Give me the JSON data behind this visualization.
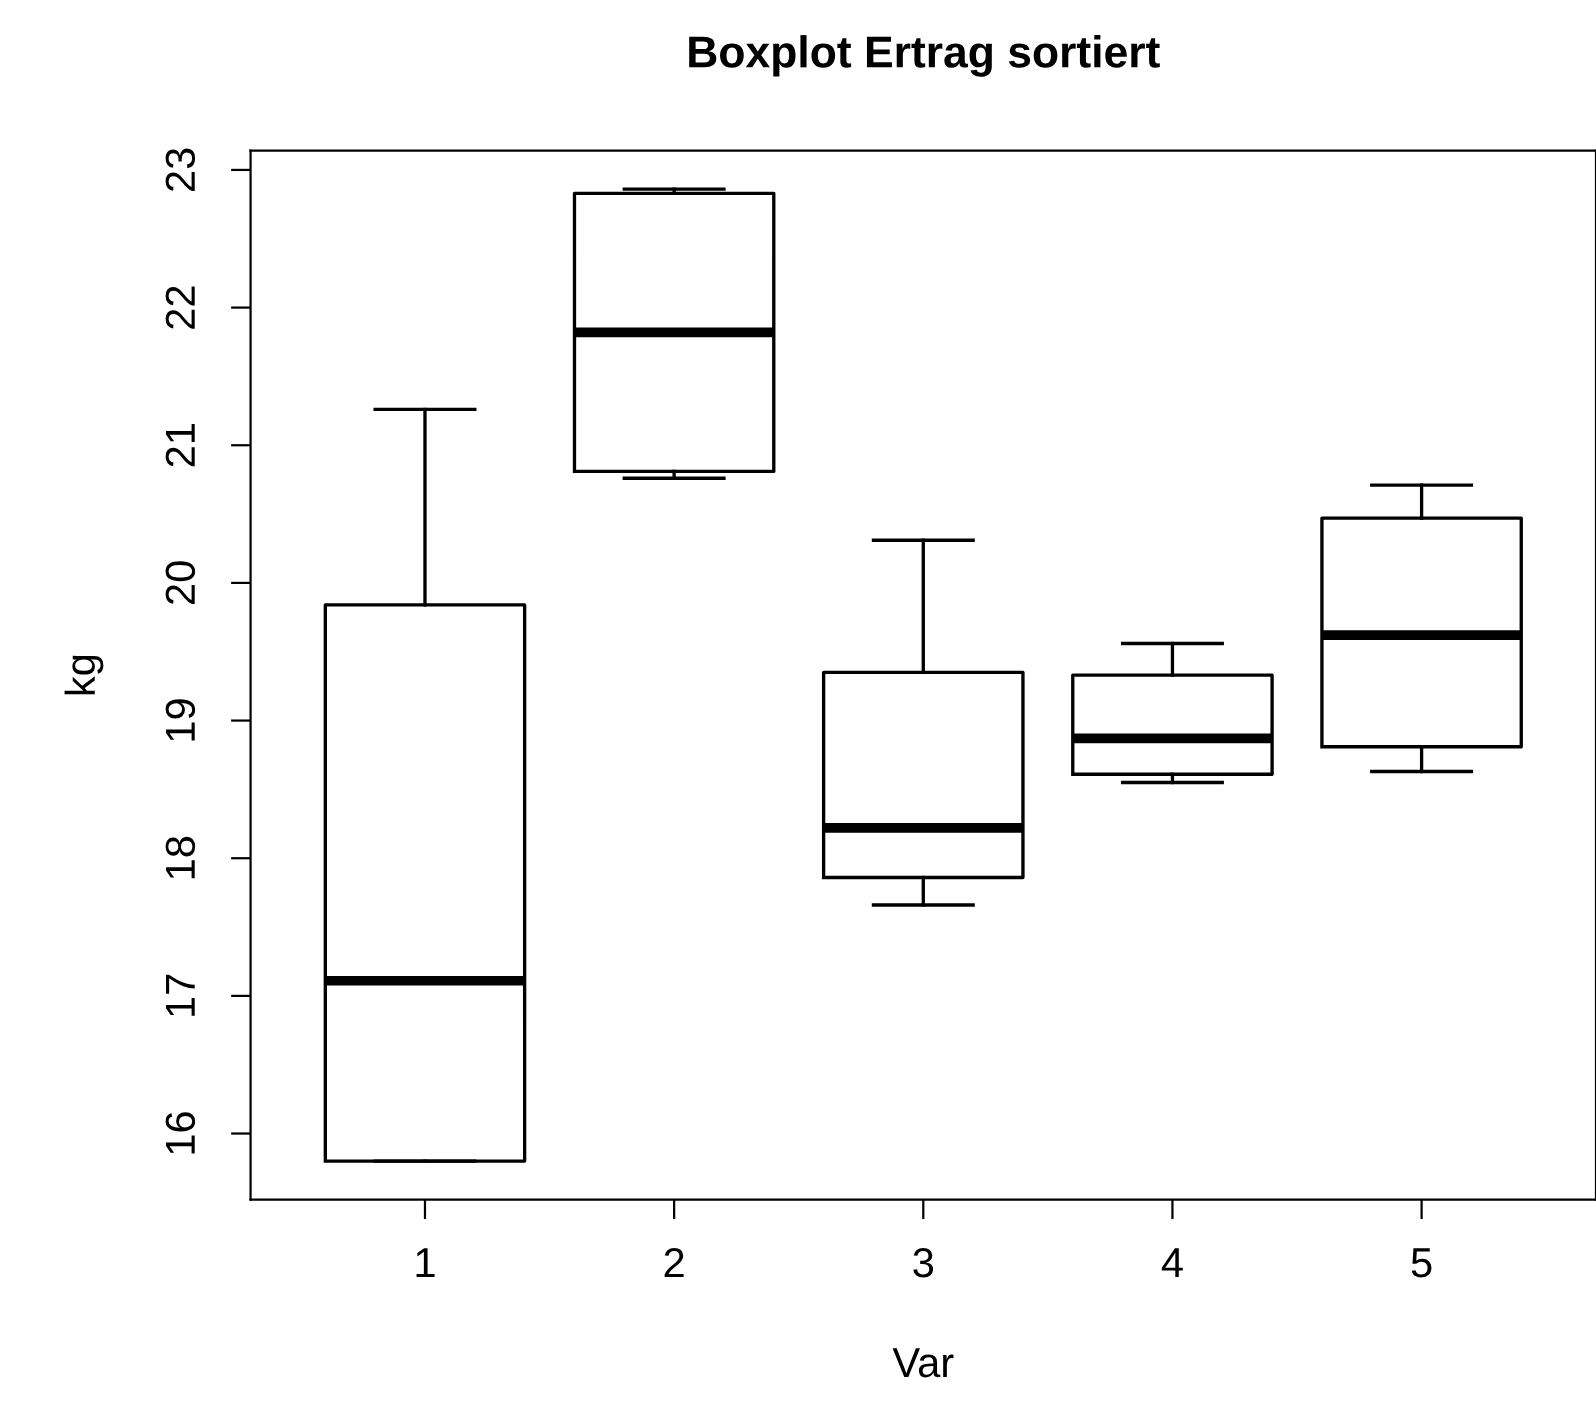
{
  "chart_data": {
    "type": "box",
    "title": "Boxplot Ertrag sortiert",
    "xlabel": "Var",
    "ylabel": "kg",
    "categories": [
      "1",
      "2",
      "3",
      "4",
      "5"
    ],
    "boxes": [
      {
        "low": 15.8,
        "q1": 15.8,
        "median": 17.11,
        "q3": 19.84,
        "high": 21.26
      },
      {
        "low": 20.76,
        "q1": 20.81,
        "median": 21.82,
        "q3": 22.83,
        "high": 22.86
      },
      {
        "low": 17.66,
        "q1": 17.86,
        "median": 18.22,
        "q3": 19.35,
        "high": 20.31
      },
      {
        "low": 18.55,
        "q1": 18.61,
        "median": 18.87,
        "q3": 19.33,
        "high": 19.56
      },
      {
        "low": 18.63,
        "q1": 18.81,
        "median": 19.62,
        "q3": 20.47,
        "high": 20.71
      }
    ],
    "ylim": [
      15.52,
      23.14
    ],
    "yticks": [
      16,
      17,
      18,
      19,
      20,
      21,
      22,
      23
    ],
    "grid": false
  }
}
